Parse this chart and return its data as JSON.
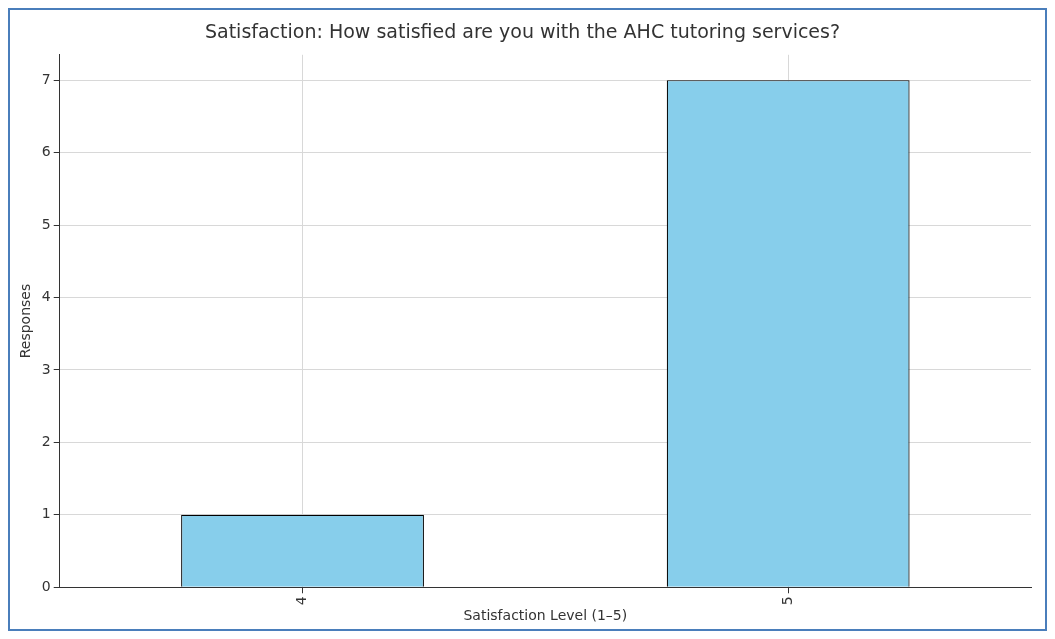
{
  "chart_data": {
    "type": "bar",
    "title": "Satisfaction: How satisfied are you with the AHC tutoring services?",
    "xlabel": "Satisfaction Level (1–5)",
    "ylabel": "Responses",
    "categories": [
      "4",
      "5"
    ],
    "values": [
      1,
      7
    ],
    "color": "#87ceeb",
    "ylim": [
      0,
      7.35
    ],
    "yticks": [
      0,
      1,
      2,
      3,
      4,
      5,
      6,
      7
    ],
    "grid": true,
    "legend": false
  }
}
